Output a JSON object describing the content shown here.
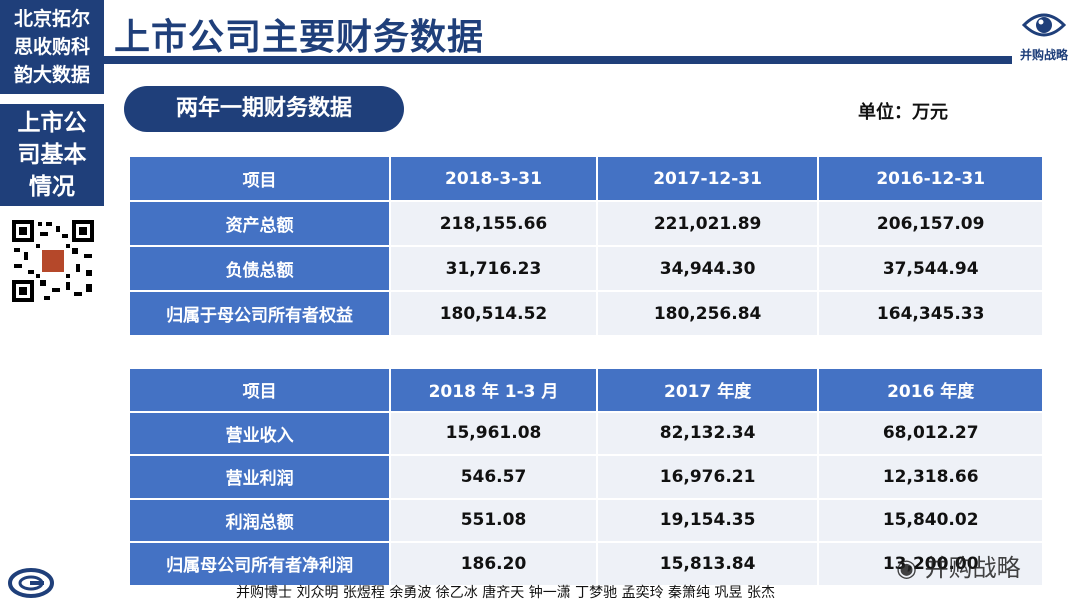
{
  "sidebar": {
    "top_lines": [
      "北京拓尔",
      "思收购科",
      "韵大数据"
    ],
    "section_lines": [
      "上市公",
      "司基本",
      "情况"
    ]
  },
  "header": {
    "title": "上市公司主要财务数据",
    "logo_text": "并购战略"
  },
  "section": {
    "pill_label": "两年一期财务数据",
    "unit": "单位：万元"
  },
  "balance_table": {
    "headers": [
      "项目",
      "2018-3-31",
      "2017-12-31",
      "2016-12-31"
    ],
    "rows": [
      {
        "label": "资产总额",
        "values": [
          "218,155.66",
          "221,021.89",
          "206,157.09"
        ]
      },
      {
        "label": "负债总额",
        "values": [
          "31,716.23",
          "34,944.30",
          "37,544.94"
        ]
      },
      {
        "label": "归属于母公司所有者权益",
        "values": [
          "180,514.52",
          "180,256.84",
          "164,345.33"
        ]
      }
    ]
  },
  "income_table": {
    "headers": [
      "项目",
      "2018 年 1-3 月",
      "2017 年度",
      "2016 年度"
    ],
    "rows": [
      {
        "label": "营业收入",
        "values": [
          "15,961.08",
          "82,132.34",
          "68,012.27"
        ]
      },
      {
        "label": "营业利润",
        "values": [
          "546.57",
          "16,976.21",
          "12,318.66"
        ]
      },
      {
        "label": "利润总额",
        "values": [
          "551.08",
          "19,154.35",
          "15,840.02"
        ]
      },
      {
        "label": "归属母公司所有者净利润",
        "values": [
          "186.20",
          "15,813.84",
          "13,200.00"
        ]
      }
    ]
  },
  "footer": {
    "authors": "并购博士 刘众明 张煜程 余勇波 徐乙冰 唐齐天 钟一潇 丁梦驰 孟奕玲 秦箫纯 巩昱 张杰",
    "watermark": "并购战略"
  },
  "colors": {
    "navy": "#1f3f7a",
    "header_blue": "#4472c4",
    "cell_bg": "#eef1f7"
  }
}
